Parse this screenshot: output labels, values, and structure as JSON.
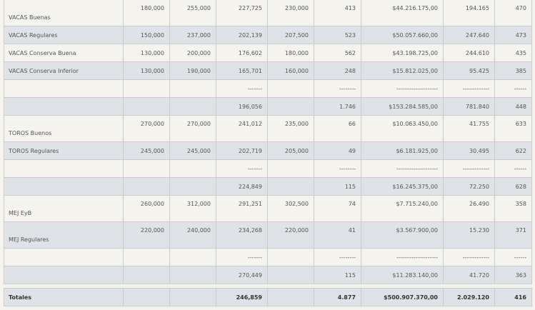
{
  "rows": [
    {
      "label": "VACAS Buenas",
      "c1": "180,000",
      "c2": "255,000",
      "c3": "227,725",
      "c4": "230,000",
      "c5": "413",
      "c6": "$44.216.175,00",
      "c7": "194.165",
      "c8": "470",
      "tall": true
    },
    {
      "label": "VACAS Regulares",
      "c1": "150,000",
      "c2": "237,000",
      "c3": "202,139",
      "c4": "207,500",
      "c5": "523",
      "c6": "$50.057.660,00",
      "c7": "247.640",
      "c8": "473"
    },
    {
      "label": "VACAS Conserva Buena",
      "c1": "130,000",
      "c2": "200,000",
      "c3": "176,602",
      "c4": "180,000",
      "c5": "562",
      "c6": "$43.198.725,00",
      "c7": "244.610",
      "c8": "435"
    },
    {
      "label": "VACAS Conserva Inferior",
      "c1": "130,000",
      "c2": "190,000",
      "c3": "165,701",
      "c4": "160,000",
      "c5": "248",
      "c6": "$15.812.025,00",
      "c7": "95.425",
      "c8": "385"
    },
    {
      "label": "",
      "c1": "",
      "c2": "",
      "c3": "-------",
      "c4": "",
      "c5": "--------",
      "c6": "--------------------",
      "c7": "-------------",
      "c8": "------"
    },
    {
      "label": "",
      "c1": "",
      "c2": "",
      "c3": "196,056",
      "c4": "",
      "c5": "1.746",
      "c6": "$153.284.585,00",
      "c7": "781.840",
      "c8": "448"
    },
    {
      "label": "TOROS Buenos",
      "c1": "270,000",
      "c2": "270,000",
      "c3": "241,012",
      "c4": "235,000",
      "c5": "66",
      "c6": "$10.063.450,00",
      "c7": "41.755",
      "c8": "633",
      "tall": true
    },
    {
      "label": "TOROS Regulares",
      "c1": "245,000",
      "c2": "245,000",
      "c3": "202,719",
      "c4": "205,000",
      "c5": "49",
      "c6": "$6.181.925,00",
      "c7": "30.495",
      "c8": "622"
    },
    {
      "label": "",
      "c1": "",
      "c2": "",
      "c3": "-------",
      "c4": "",
      "c5": "--------",
      "c6": "--------------------",
      "c7": "-------------",
      "c8": "------"
    },
    {
      "label": "",
      "c1": "",
      "c2": "",
      "c3": "224,849",
      "c4": "",
      "c5": "115",
      "c6": "$16.245.375,00",
      "c7": "72.250",
      "c8": "628"
    },
    {
      "label": "MEJ EyB",
      "c1": "260,000",
      "c2": "312,000",
      "c3": "291,251",
      "c4": "302,500",
      "c5": "74",
      "c6": "$7.715.240,00",
      "c7": "26.490",
      "c8": "358",
      "tall": true
    },
    {
      "label": "MEJ Regulares",
      "c1": "220,000",
      "c2": "240,000",
      "c3": "234,268",
      "c4": "220,000",
      "c5": "41",
      "c6": "$3.567.900,00",
      "c7": "15.230",
      "c8": "371",
      "tall": true
    },
    {
      "label": "",
      "c1": "",
      "c2": "",
      "c3": "-------",
      "c4": "",
      "c5": "--------",
      "c6": "--------------------",
      "c7": "-------------",
      "c8": "------"
    },
    {
      "label": "",
      "c1": "",
      "c2": "",
      "c3": "270,449",
      "c4": "",
      "c5": "115",
      "c6": "$11.283.140,00",
      "c7": "41.720",
      "c8": "363"
    }
  ],
  "totals": {
    "label": "Totales",
    "c1": "",
    "c2": "",
    "c3": "246,859",
    "c4": "",
    "c5": "4.877",
    "c6": "$500.907.370,00",
    "c7": "2.029.120",
    "c8": "416"
  },
  "colors": {
    "row_light": "#f4f3ee",
    "row_dark": "#dfe2e6",
    "border": "#c9cbcd"
  }
}
